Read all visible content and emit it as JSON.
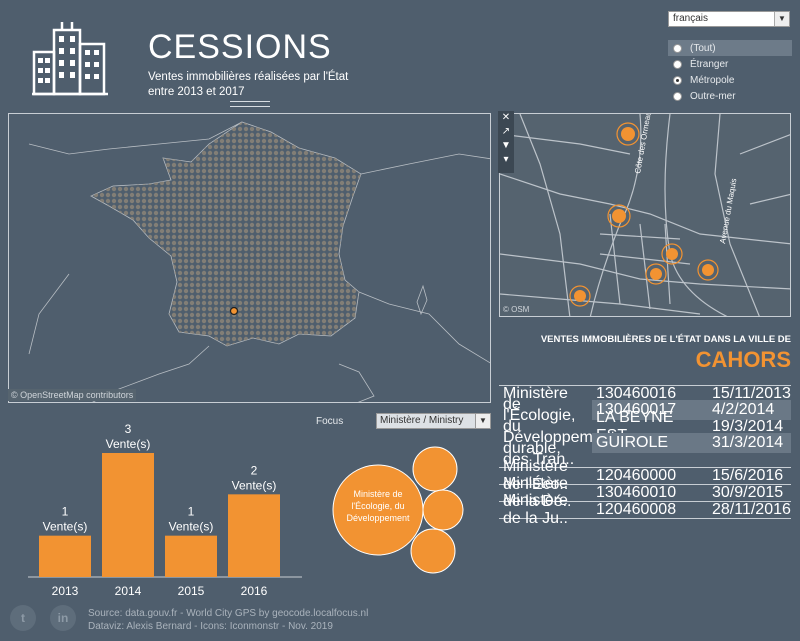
{
  "header": {
    "title": "CESSIONS",
    "subtitle_line1": "Ventes immobilières réalisées par l'État",
    "subtitle_line2": "entre 2013 et 2017"
  },
  "language": {
    "selected": "français"
  },
  "region_filter": {
    "options": [
      {
        "label": "(Tout)",
        "checked": false
      },
      {
        "label": "Étranger",
        "checked": false
      },
      {
        "label": "Métropole",
        "checked": true
      },
      {
        "label": "Outre-mer",
        "checked": false
      }
    ]
  },
  "map": {
    "credit": "© OpenStreetMap contributors",
    "small_credit": "© OSM"
  },
  "city_map": {
    "street_1": "Côte des Ormeaux",
    "street_2": "Avenue du Maquis"
  },
  "city": {
    "heading": "VENTES IMMOBILIÈRES DE L'ÉTAT DANS LA VILLE DE",
    "name": "CAHORS"
  },
  "table": {
    "groups": [
      {
        "ministry": "Ministère de l'Écologie, du Développement durable, des Tran..",
        "rows": [
          {
            "ref": "130460016",
            "date": "15/11/2013"
          },
          {
            "ref": "130460017",
            "date": "4/2/2014"
          },
          {
            "ref": "LA BEYNE EST",
            "date": "19/3/2014"
          },
          {
            "ref": "GUIROLE",
            "date": "31/3/2014"
          }
        ]
      },
      {
        "ministry": "Ministère de l'Éco..",
        "rows": [
          {
            "ref": "120460000",
            "date": "15/6/2016"
          }
        ]
      },
      {
        "ministry": "Ministère de la Dé..",
        "rows": [
          {
            "ref": "130460010",
            "date": "30/9/2015"
          }
        ]
      },
      {
        "ministry": "Ministère de la Ju..",
        "rows": [
          {
            "ref": "120460008",
            "date": "28/11/2016"
          }
        ]
      }
    ]
  },
  "focus": {
    "label": "Focus",
    "selected": "Ministère / Ministry"
  },
  "chart_data": {
    "type": "bar",
    "categories": [
      "2013",
      "2014",
      "2015",
      "2016"
    ],
    "values": [
      1,
      3,
      1,
      2
    ],
    "value_suffix": "Vente(s)",
    "bar_color": "#f29332",
    "ylim": [
      0,
      3
    ]
  },
  "bubbles": {
    "main_label": "Ministère de l'Écologie, du Développement",
    "color": "#f29332"
  },
  "footer": {
    "line1": "Source: data.gouv.fr - World City GPS by geocode.localfocus.nl",
    "line2": "Dataviz: Alexis Bernard - Icons: Iconmonstr - Nov. 2019"
  },
  "social": {
    "twitter": "twitter-icon",
    "linkedin": "linkedin-icon"
  }
}
